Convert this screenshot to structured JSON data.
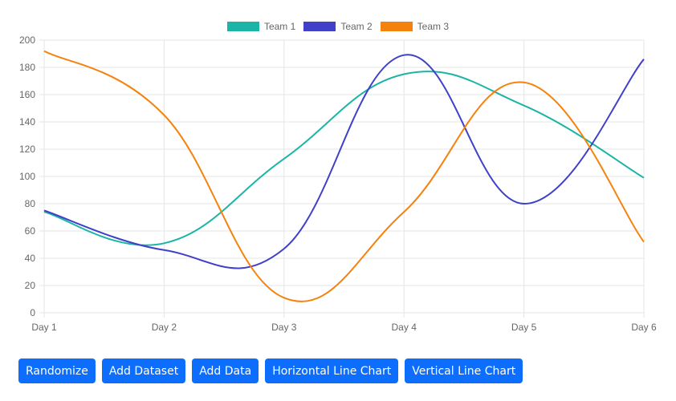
{
  "chart_data": {
    "type": "line",
    "title": "",
    "xlabel": "",
    "ylabel": "",
    "categories": [
      "Day 1",
      "Day 2",
      "Day 3",
      "Day 4",
      "Day 5",
      "Day 6"
    ],
    "series": [
      {
        "name": "Team 1",
        "color": "#1ab5a6",
        "values": [
          74,
          51,
          113,
          175,
          152,
          99
        ]
      },
      {
        "name": "Team 2",
        "color": "#4040c8",
        "values": [
          75,
          46,
          47,
          189,
          80,
          186
        ]
      },
      {
        "name": "Team 3",
        "color": "#f5820d",
        "values": [
          192,
          145,
          11,
          74,
          169,
          52
        ]
      }
    ],
    "ylim": [
      0,
      200
    ],
    "yticks": [
      0,
      20,
      40,
      60,
      80,
      100,
      120,
      140,
      160,
      180,
      200
    ],
    "grid": true,
    "legend_position": "top",
    "curve": "smooth"
  },
  "legend": [
    {
      "label": "Team 1",
      "color": "#1ab5a6"
    },
    {
      "label": "Team 2",
      "color": "#4040c8"
    },
    {
      "label": "Team 3",
      "color": "#f5820d"
    }
  ],
  "buttons": {
    "randomize": "Randomize",
    "add_dataset": "Add Dataset",
    "add_data": "Add Data",
    "horizontal": "Horizontal Line Chart",
    "vertical": "Vertical Line Chart"
  }
}
